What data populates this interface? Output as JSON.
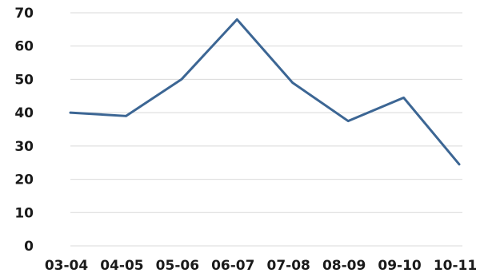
{
  "chart_data": {
    "type": "line",
    "title": "",
    "xlabel": "",
    "ylabel": "",
    "categories": [
      "03-04",
      "04-05",
      "05-06",
      "06-07",
      "07-08",
      "08-09",
      "09-10",
      "10-11"
    ],
    "series": [
      {
        "values": [
          40,
          39,
          50,
          68,
          49,
          37.5,
          44.5,
          24.5
        ]
      }
    ],
    "ylim": [
      0,
      70
    ],
    "yticks": [
      "0",
      "10",
      "20",
      "30",
      "40",
      "50",
      "60",
      "70"
    ],
    "grid": true,
    "legend": "none",
    "line_color": "#3c6694"
  }
}
